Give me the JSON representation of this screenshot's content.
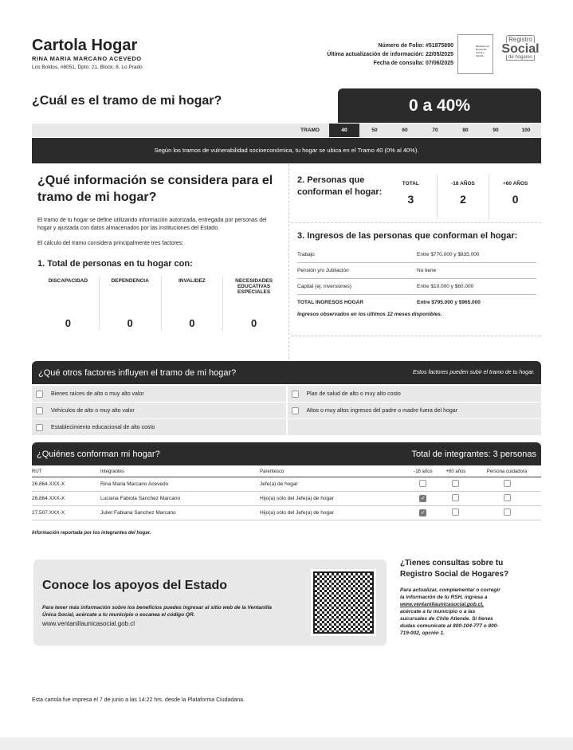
{
  "header": {
    "title": "Cartola Hogar",
    "name": "RINA MARIA MARCANO ACEVEDO",
    "address": "Los Boldos, #8051, Dpto: 21, Block: 8, Lo Prado",
    "folio": "Número de Folio: #51875890",
    "updated": "Última actualización de información: 22/05/2025",
    "consulted": "Fecha de consulta: 07/06/2025",
    "logo_ministry": "Ministerio de Desarrollo Social y Familia",
    "logo_rsh": {
      "top": "Registro",
      "main": "Social",
      "bottom": "de hogares"
    }
  },
  "tramo": {
    "question": "¿Cuál es el tramo de mi hogar?",
    "value": "0 a 40%",
    "label": "TRAMO",
    "scale": [
      "40",
      "50",
      "60",
      "70",
      "80",
      "90",
      "100"
    ],
    "active": "40",
    "banner": "Según los tramos de vulnerabilidad socioeconómica, tu hogar se ubica en el Tramo 40 (0% al 40%)."
  },
  "info": {
    "title": "¿Qué información se considera para el tramo de mi hogar?",
    "p1": "El tramo de tu hogar se define utilizando información autorizada, entregada por personas del hogar y ajustada con datos almacenados por las instituciones del Estado.",
    "p2": "El cálculo del tramo considera principalmente tres factores:",
    "s1": "1. Total de personas en tu hogar con:",
    "counts": [
      {
        "label": "DISCAPACIDAD",
        "value": "0"
      },
      {
        "label": "DEPENDENCIA",
        "value": "0"
      },
      {
        "label": "INVALIDEZ",
        "value": "0"
      },
      {
        "label": "NECESIDADES EDUCATIVAS ESPECIALES",
        "value": "0"
      }
    ]
  },
  "persons": {
    "title": "2. Personas que conforman el hogar:",
    "cols": [
      {
        "label": "TOTAL",
        "value": "3"
      },
      {
        "label": "-18 AÑOS",
        "value": "2"
      },
      {
        "label": "+60 AÑOS",
        "value": "0"
      }
    ]
  },
  "income": {
    "title": "3. Ingresos de las personas que conforman el hogar:",
    "rows": [
      {
        "label": "Trabajo",
        "value": "Entre $770.000 y $935.000"
      },
      {
        "label": "Pensión y/o Jubilación",
        "value": "No tiene"
      },
      {
        "label": "Capital (ej. inversiones)",
        "value": "Entre $10.000 y $60.000"
      },
      {
        "label": "TOTAL INGRESOS HOGAR",
        "value": "Entre $795.000 y $965.000"
      }
    ],
    "note": "Ingresos observados en los últimos 12 meses disponibles."
  },
  "factors": {
    "title": "¿Qué otros factores influyen el tramo de mi hogar?",
    "note": "Estos factores pueden subir el tramo de tu hogar.",
    "items": [
      "Bienes raíces de alto o muy alto valor",
      "Plan de salud de alto o muy alto costo",
      "Vehículos de alto o muy alto valor",
      "Altos o muy altos ingresos del padre o madre fuera del hogar",
      "Establecimiento educacional de alto costo"
    ]
  },
  "members": {
    "title": "¿Quiénes conforman mi hogar?",
    "total": "Total de integrantes: 3 personas",
    "headers": [
      "RUT",
      "Integrantes",
      "Parentesco",
      "-18 años",
      "+60 años",
      "Persona cuidadora"
    ],
    "rows": [
      {
        "rut": "26.864.XXX-X",
        "name": "Rina Maria Marcano Acevedo",
        "rel": "Jefe(a) de hogar",
        "u18": false,
        "o60": false,
        "care": false
      },
      {
        "rut": "26.864.XXX-X",
        "name": "Luciana Fabiola Sanchez Marcano",
        "rel": "Hijo(a) sólo del Jefe(a) de hogar",
        "u18": true,
        "o60": false,
        "care": false
      },
      {
        "rut": "27.507.XXX-X",
        "name": "Juliet Fabiana Sanchez Marcano",
        "rel": "Hijo(a) sólo del Jefe(a) de hogar",
        "u18": true,
        "o60": false,
        "care": false
      }
    ],
    "note": "Información reportada por los integrantes del hogar."
  },
  "apoyos": {
    "title": "Conoce los apoyos del Estado",
    "text": "Para tener más información sobre los beneficios puedes ingresar al sitio web de la Ventanilla Única Social, acércate a tu municipio o escanea el código QR.",
    "link": "www.ventanillaunicasocial.gob.cl"
  },
  "consultas": {
    "title": "¿Tienes consultas sobre tu Registro Social de Hogares?",
    "text1": "Para actualizar, complementar o corregir la información de tu RSH, ingresa a",
    "link": "www.ventanillaunicasocial.gob.cl,",
    "text2": "acércate a tu municipio o a las sucursales de Chile Atiende. Si tienes dudas comunícate al 800-104-777 o 800-719-002, opción 1."
  },
  "footer": "Esta cartola fue impresa el 7 de junio a las 14:22 hrs. desde la Plataforma Ciudadana."
}
